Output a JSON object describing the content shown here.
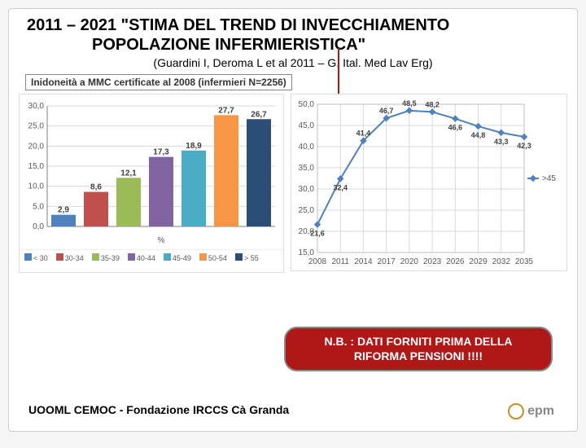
{
  "title_line1": "2011 – 2021 \"STIMA DEL TREND DI INVECCHIAMENTO",
  "title_line2": "POPOLAZIONE INFERMIERISTICA\"",
  "citation": "(Guardini I, Deroma L et al 2011 – G. Ital. Med Lav Erg)",
  "subtitle": "Inidoneità a MMC certificate al 2008 (infermieri N=2256)",
  "bar_chart": {
    "type": "bar",
    "ylim": [
      0,
      30
    ],
    "ytick_step": 5,
    "xlabel": "%",
    "grid_color": "#d9d9d9",
    "axis_color": "#808080",
    "label_fontsize": 10,
    "categories": [
      "< 30",
      "30-34",
      "35-39",
      "40-44",
      "45-49",
      "50-54",
      "> 55"
    ],
    "values": [
      2.9,
      8.6,
      12.1,
      17.3,
      18.9,
      27.7,
      26.7
    ],
    "colors": [
      "#4f81bd",
      "#c0504d",
      "#9bbb59",
      "#8064a2",
      "#4bacc6",
      "#f79646",
      "#2c4d75"
    ]
  },
  "line_chart": {
    "type": "line",
    "series_label": ">45",
    "series_color": "#4f81bd",
    "marker": "diamond",
    "grid_color": "#d9d9d9",
    "axis_color": "#808080",
    "label_fontsize": 10,
    "ylim": [
      15,
      50
    ],
    "ytick_step": 5,
    "x": [
      2008,
      2011,
      2014,
      2017,
      2020,
      2023,
      2026,
      2029,
      2032,
      2035
    ],
    "y": [
      21.6,
      32.4,
      41.4,
      46.7,
      48.5,
      48.2,
      46.6,
      44.8,
      43.3,
      42.3
    ]
  },
  "note_line1": "N.B. : DATI FORNITI PRIMA DELLA",
  "note_line2": "RIFORMA PENSIONI !!!!",
  "footer": "UOOML CEMOC - Fondazione IRCCS Cà Granda",
  "logo_text": "epm"
}
